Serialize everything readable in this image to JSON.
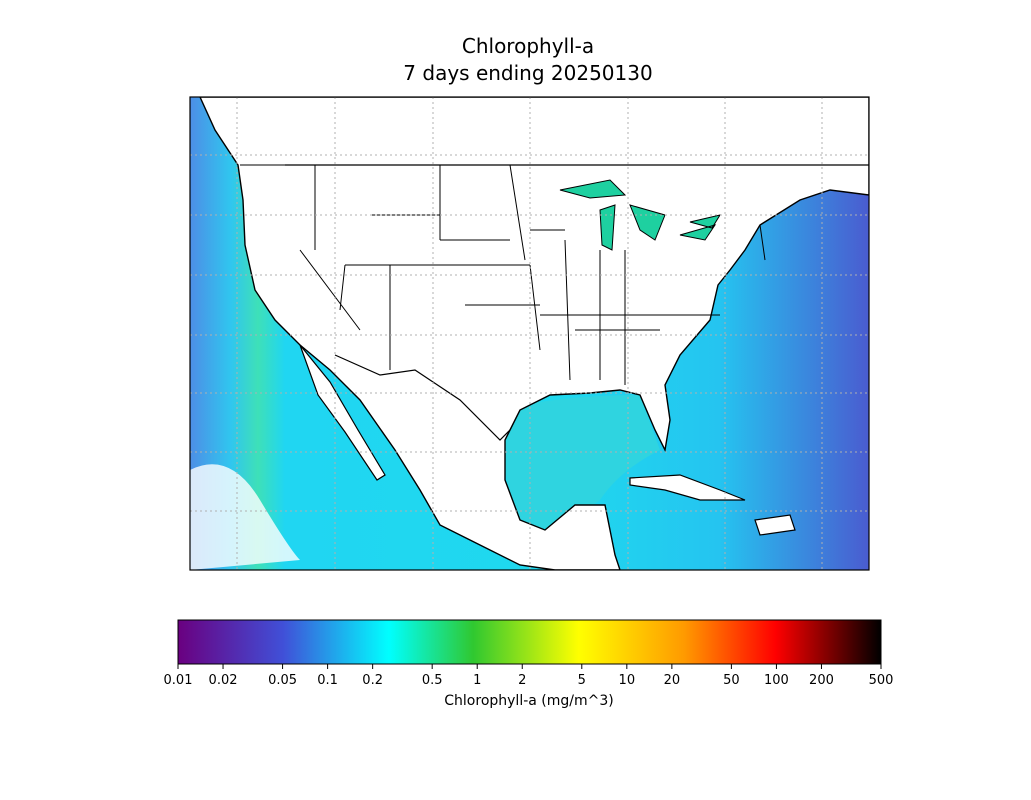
{
  "title": [
    "Chlorophyll-a",
    "7 days ending 20250130"
  ],
  "colorbar": {
    "label": "Chlorophyll-a (mg/m^3)",
    "scale": "log",
    "lim": [
      0.01,
      500
    ],
    "ticks": [
      0.01,
      0.02,
      0.05,
      0.1,
      0.2,
      0.5,
      1,
      2,
      5,
      10,
      20,
      50,
      100,
      200,
      500
    ]
  }
}
